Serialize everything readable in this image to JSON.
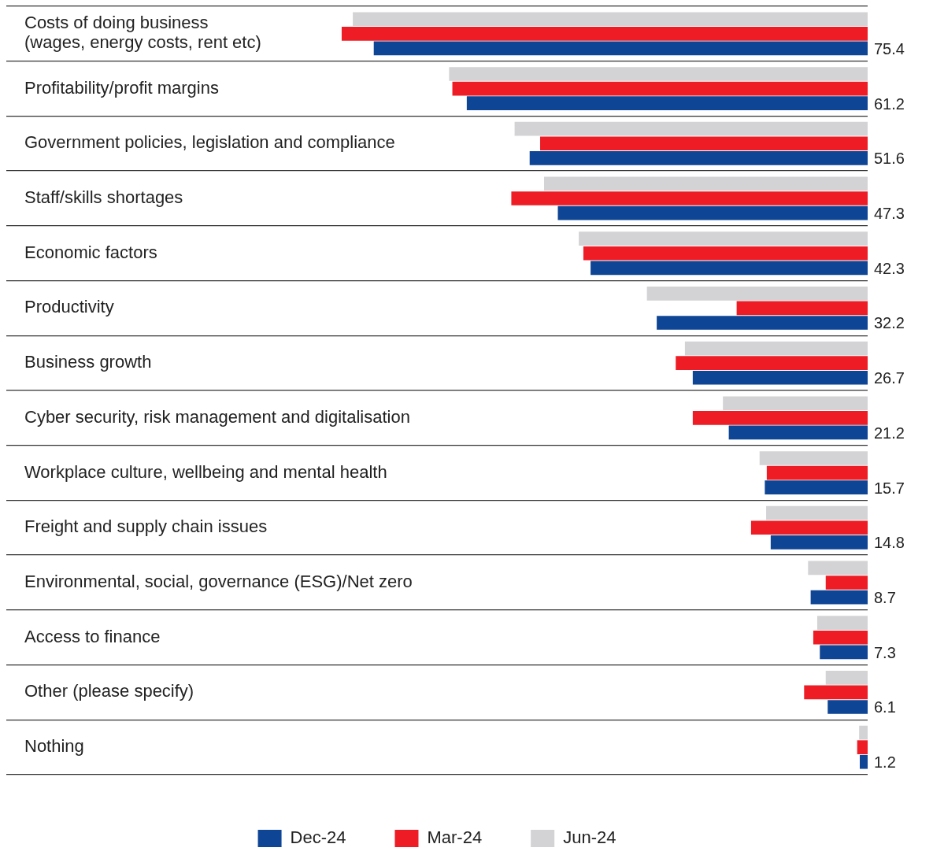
{
  "chart_data": {
    "type": "bar",
    "orientation": "horizontal",
    "categories": [
      "Costs of doing business\n(wages, energy costs, rent etc)",
      "Profitability/profit margins",
      "Government policies, legislation and compliance",
      "Staff/skills shortages",
      "Economic factors",
      "Productivity",
      "Business growth",
      "Cyber security, risk management and digitalisation",
      "Workplace culture, wellbeing and mental health",
      "Freight and supply chain issues",
      "Environmental, social, governance (ESG)/Net zero",
      "Access to finance",
      "Other (please specify)",
      "Nothing"
    ],
    "series": [
      {
        "name": "Jun-24",
        "color": "#d3d3d5",
        "values": [
          78.6,
          63.9,
          53.9,
          49.4,
          44.1,
          33.7,
          27.9,
          22.1,
          16.5,
          15.5,
          9.1,
          7.7,
          6.4,
          1.3
        ]
      },
      {
        "name": "Mar-24",
        "color": "#ee1c25",
        "values": [
          80.3,
          63.4,
          50.0,
          54.4,
          43.4,
          20.0,
          29.3,
          26.7,
          15.4,
          17.8,
          6.4,
          8.3,
          9.7,
          1.6
        ]
      },
      {
        "name": "Dec-24",
        "color": "#0f4595",
        "values": [
          75.4,
          61.2,
          51.6,
          47.3,
          42.3,
          32.2,
          26.7,
          21.2,
          15.7,
          14.8,
          8.7,
          7.3,
          6.1,
          1.2
        ],
        "value_labels": [
          "75.4",
          "61.2",
          "51.6",
          "47.3",
          "42.3",
          "32.2",
          "26.7",
          "21.2",
          "15.7",
          "14.8",
          "8.7",
          "7.3",
          "6.1",
          "1.2"
        ]
      }
    ],
    "xlim": [
      131.5,
      0
    ],
    "grid": "y",
    "legend": "bottom"
  }
}
